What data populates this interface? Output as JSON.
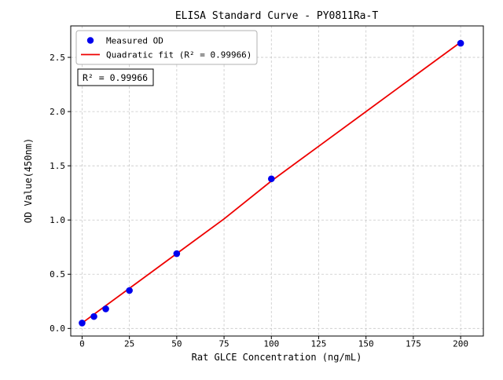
{
  "figure": {
    "title": "ELISA Standard Curve - PY0811Ra-T",
    "xlabel": "Rat GLCE Concentration (ng/mL)",
    "ylabel": "OD Value(450nm)",
    "annotation": "R² = 0.99966"
  },
  "legend": {
    "entries": [
      {
        "label": "Measured OD",
        "type": "marker",
        "color": "#0000ee"
      },
      {
        "label": "Quadratic fit (R² = 0.99966)",
        "type": "line",
        "color": "#ee0000"
      }
    ]
  },
  "chart_data": {
    "type": "scatter",
    "title": "ELISA Standard Curve - PY0811Ra-T",
    "xlabel": "Rat GLCE Concentration (ng/mL)",
    "ylabel": "OD Value(450nm)",
    "xlim": [
      -6,
      212
    ],
    "ylim": [
      -0.07,
      2.79
    ],
    "xticks": [
      0,
      25,
      50,
      75,
      100,
      125,
      150,
      175,
      200
    ],
    "yticks": [
      0.0,
      0.5,
      1.0,
      1.5,
      2.0,
      2.5
    ],
    "grid": true,
    "grid_style": "dashed",
    "legend_position": "upper left",
    "r_squared": 0.99966,
    "series": [
      {
        "name": "Measured OD",
        "type": "scatter",
        "color": "#0000ee",
        "x": [
          0,
          6.25,
          12.5,
          25,
          50,
          100,
          200
        ],
        "y": [
          0.05,
          0.11,
          0.18,
          0.35,
          0.69,
          1.38,
          2.63
        ]
      },
      {
        "name": "Quadratic fit (R² = 0.99966)",
        "type": "line",
        "color": "#ee0000",
        "x": [
          0,
          25,
          50,
          75,
          100,
          125,
          150,
          175,
          200
        ],
        "y": [
          0.05,
          0.37,
          0.69,
          1.01,
          1.36,
          1.68,
          2.0,
          2.32,
          2.64
        ]
      }
    ]
  }
}
